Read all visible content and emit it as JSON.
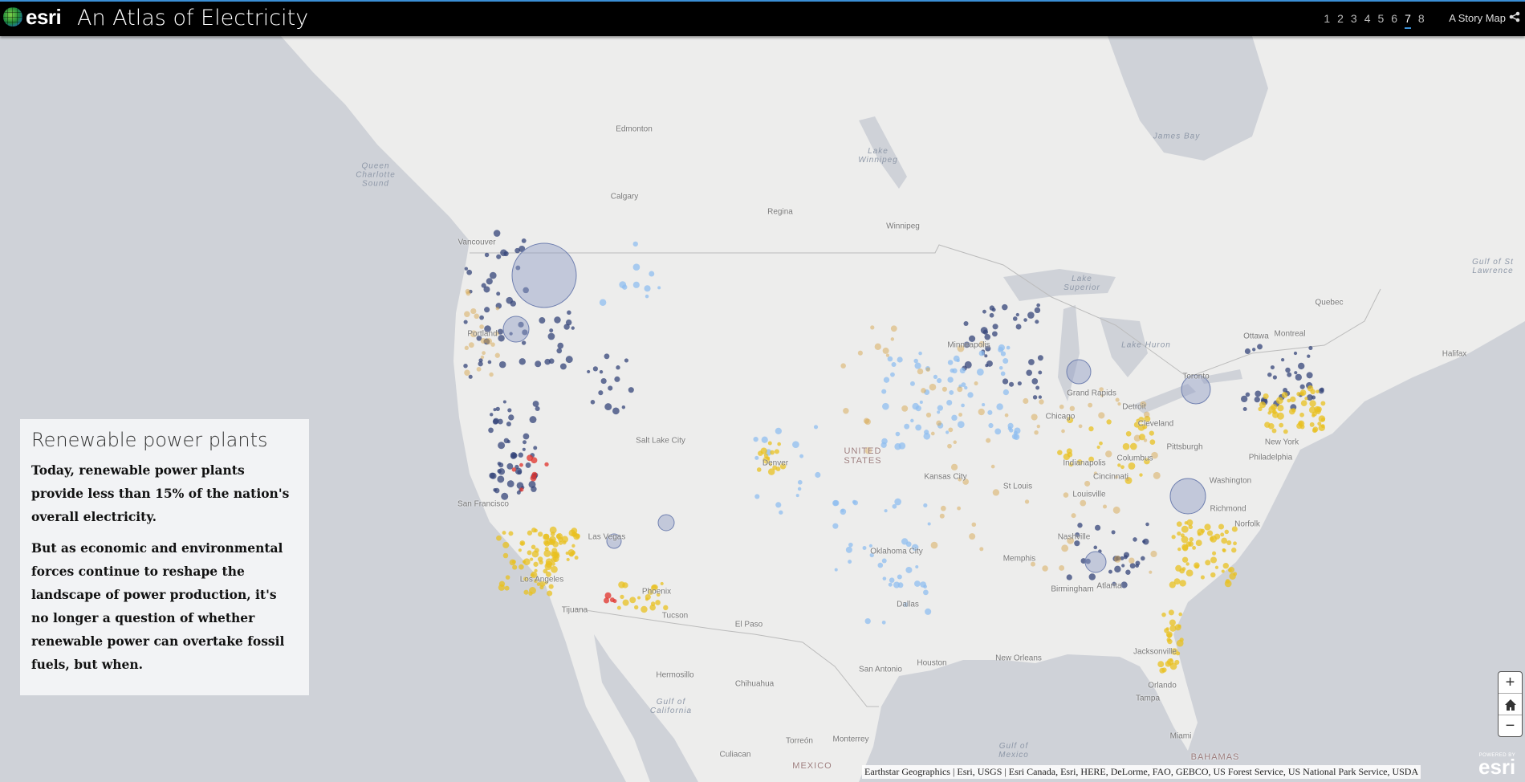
{
  "header": {
    "brand": "esri",
    "title": "An Atlas of Electricity",
    "pages": [
      "1",
      "2",
      "3",
      "4",
      "5",
      "6",
      "7",
      "8"
    ],
    "active_page": "7",
    "story_label": "A Story Map",
    "share_icon": "share-icon"
  },
  "panel": {
    "title": "Renewable power plants",
    "paragraphs": [
      "Today, renewable power plants provide less than 15% of the nation's overall electricity.",
      "But as economic and environmental forces continue to reshape the landscape of power production, it's no longer a question of whether renewable power can overtake fossil fuels, but when."
    ]
  },
  "map": {
    "labels": [
      "Edmonton",
      "Calgary",
      "Regina",
      "Winnipeg",
      "Lake Winnipeg",
      "James Bay",
      "Queen Charlotte Sound",
      "Vancouver",
      "Portland",
      "Salt Lake City",
      "UNITED STATES",
      "Kansas City",
      "St Louis",
      "Chicago",
      "Indianapolis",
      "Cincinnati",
      "Columbus",
      "Pittsburgh",
      "Cleveland",
      "Toronto",
      "Ottawa",
      "Montreal",
      "Quebec",
      "Halifax",
      "Gulf of St Lawrence",
      "New York",
      "Philadelphia",
      "Washington",
      "Richmond",
      "Norfolk",
      "Nashville",
      "Memphis",
      "Louisville",
      "Atlanta",
      "Birmingham",
      "Oklahoma City",
      "Dallas",
      "El Paso",
      "Phoenix",
      "Tucson",
      "Las Vegas",
      "Los Angeles",
      "San Francisco",
      "Tijuana",
      "Hermosillo",
      "Chihuahua",
      "Gulf of California",
      "Culiacan",
      "Torreón",
      "Monterrey",
      "MEXICO",
      "San Antonio",
      "Houston",
      "New Orleans",
      "Jacksonville",
      "Orlando",
      "Tampa",
      "Miami",
      "BAHAMAS",
      "Gulf of Mexico",
      "Grand Rapids",
      "Detroit",
      "Minneapolis",
      "Lake Superior",
      "Lake Huron",
      "Denver"
    ],
    "colors": {
      "land": "#ededec",
      "water": "#cfd2d8",
      "hydro": "#34447a",
      "wind": "#8fbdf0",
      "solar": "#e8c020",
      "biomass": "#d8a850",
      "geothermal": "#e0302a",
      "large_plant": "#8e9cc6"
    },
    "zoom_in": "+",
    "home_icon": "home-icon",
    "zoom_out": "−",
    "attribution": "Earthstar Geographics | Esri, USGS | Esri Canada, Esri, HERE, DeLorme, FAO, GEBCO, US Forest Service, US National Park Service, USDA",
    "powered_by": "POWERED BY",
    "powered_brand": "esri"
  }
}
